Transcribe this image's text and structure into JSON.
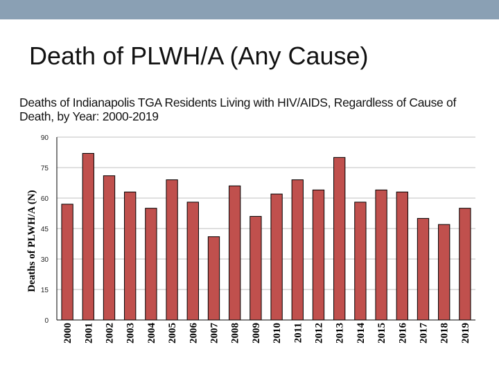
{
  "slide": {
    "title": "Death of PLWH/A (Any Cause)"
  },
  "colors": {
    "header_bar": "#8aa0b4",
    "bar_fill": "#c0504d",
    "bar_edge": "#000000",
    "grid": "#bfbfbf"
  },
  "chart_data": {
    "type": "bar",
    "title": "Deaths of Indianapolis TGA Residents Living with HIV/AIDS, Regardless of Cause of Death, by Year: 2000-2019",
    "xlabel": "",
    "ylabel": "Deaths of PLWH/A (N)",
    "ylim": [
      0,
      90
    ],
    "yticks": [
      0,
      15,
      30,
      45,
      60,
      75,
      90
    ],
    "grid": true,
    "categories": [
      "2000",
      "2001",
      "2002",
      "2003",
      "2004",
      "2005",
      "2006",
      "2007",
      "2008",
      "2009",
      "2010",
      "2011",
      "2012",
      "2013",
      "2014",
      "2015",
      "2016",
      "2017",
      "2018",
      "2019"
    ],
    "series": [
      {
        "name": "Deaths",
        "values": [
          57,
          82,
          71,
          63,
          55,
          69,
          58,
          41,
          66,
          51,
          62,
          69,
          64,
          80,
          58,
          64,
          63,
          50,
          47,
          55
        ]
      }
    ]
  }
}
